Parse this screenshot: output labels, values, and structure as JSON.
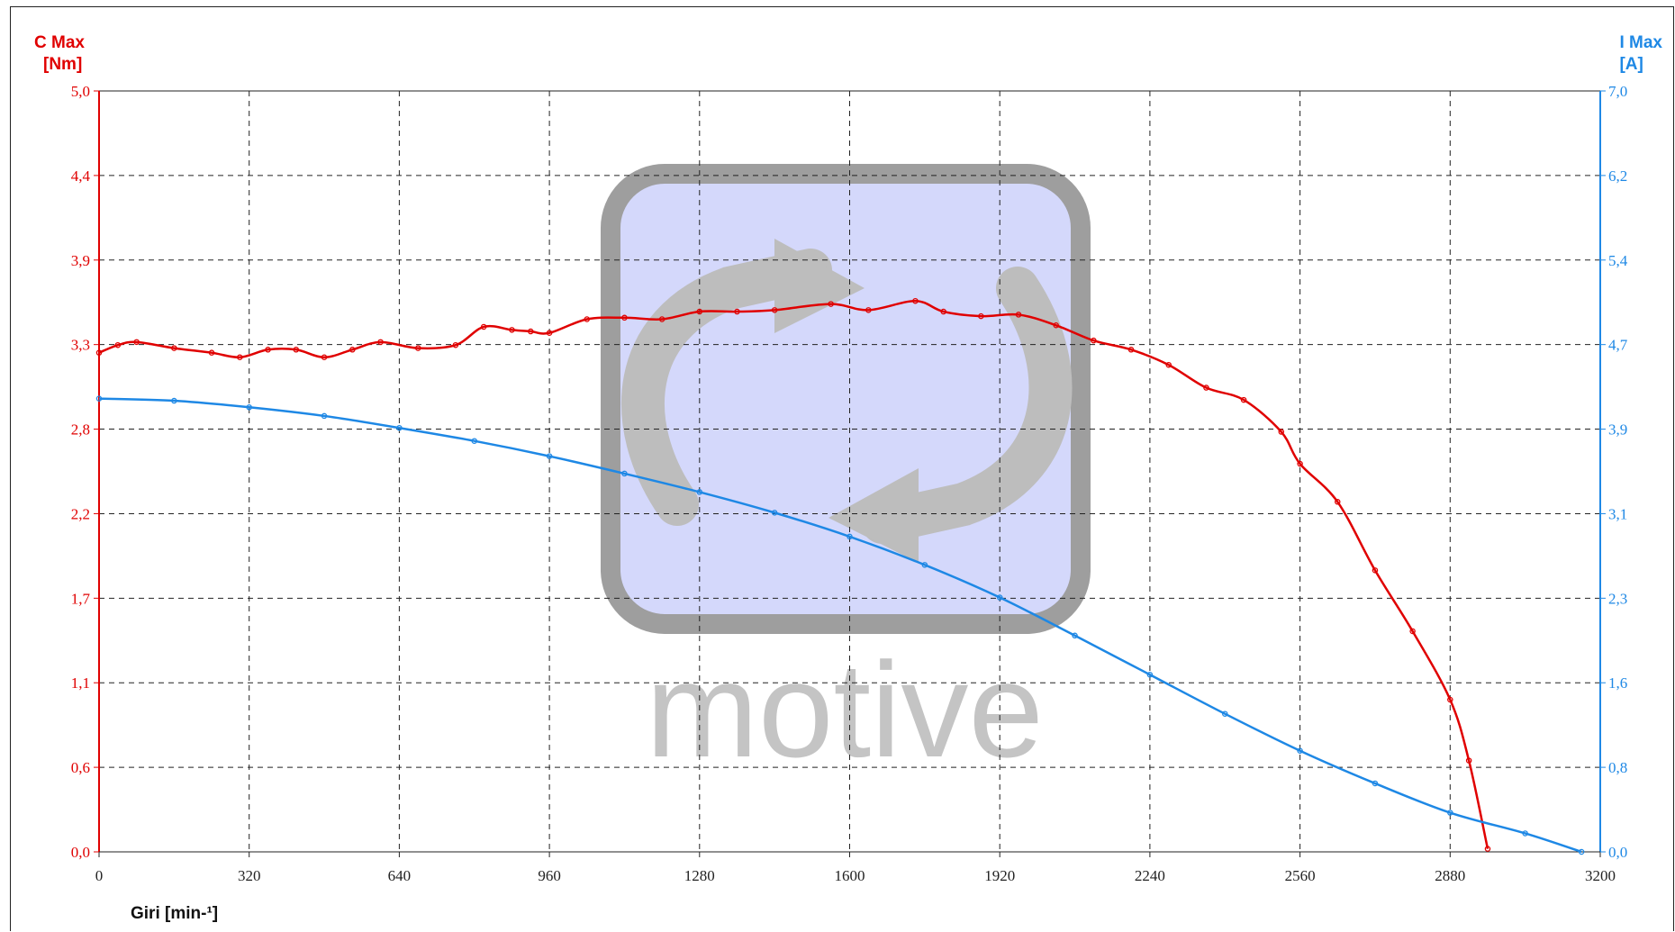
{
  "chart_data": {
    "type": "line",
    "x_axis": {
      "label": "Giri [min-¹]",
      "range": [
        0,
        3200
      ],
      "ticks": [
        "0",
        "320",
        "640",
        "960",
        "1280",
        "1600",
        "1920",
        "2240",
        "2560",
        "2880",
        "3200"
      ]
    },
    "y_axis_left": {
      "label_line1": "C Max",
      "label_line2": "[Nm]",
      "range": [
        0,
        5.0
      ],
      "ticks": [
        "0,0",
        "0,6",
        "1,1",
        "1,7",
        "2,2",
        "2,8",
        "3,3",
        "3,9",
        "4,4",
        "5,0"
      ],
      "color": "#e00000"
    },
    "y_axis_right": {
      "label_line1": "I Max",
      "label_line2": "[A]",
      "range": [
        0,
        7.0
      ],
      "ticks": [
        "0,0",
        "0,8",
        "1,6",
        "2,3",
        "3,1",
        "3,9",
        "4,7",
        "5,4",
        "6,2",
        "7,0"
      ],
      "color": "#1e88e5"
    },
    "grid": true,
    "series": [
      {
        "axis": "left",
        "color": "#e00000",
        "points": [
          [
            0,
            3.28
          ],
          [
            40,
            3.33
          ],
          [
            80,
            3.35
          ],
          [
            160,
            3.31
          ],
          [
            240,
            3.28
          ],
          [
            300,
            3.25
          ],
          [
            360,
            3.3
          ],
          [
            420,
            3.3
          ],
          [
            480,
            3.25
          ],
          [
            540,
            3.3
          ],
          [
            600,
            3.35
          ],
          [
            680,
            3.31
          ],
          [
            760,
            3.33
          ],
          [
            820,
            3.45
          ],
          [
            880,
            3.43
          ],
          [
            920,
            3.42
          ],
          [
            960,
            3.41
          ],
          [
            1040,
            3.5
          ],
          [
            1120,
            3.51
          ],
          [
            1200,
            3.5
          ],
          [
            1280,
            3.55
          ],
          [
            1360,
            3.55
          ],
          [
            1440,
            3.56
          ],
          [
            1560,
            3.6
          ],
          [
            1640,
            3.56
          ],
          [
            1740,
            3.62
          ],
          [
            1800,
            3.55
          ],
          [
            1880,
            3.52
          ],
          [
            1960,
            3.53
          ],
          [
            2040,
            3.46
          ],
          [
            2120,
            3.36
          ],
          [
            2200,
            3.3
          ],
          [
            2280,
            3.2
          ],
          [
            2360,
            3.05
          ],
          [
            2440,
            2.97
          ],
          [
            2520,
            2.76
          ],
          [
            2560,
            2.55
          ],
          [
            2640,
            2.3
          ],
          [
            2720,
            1.85
          ],
          [
            2800,
            1.45
          ],
          [
            2880,
            1.0
          ],
          [
            2920,
            0.6
          ],
          [
            2960,
            0.02
          ]
        ]
      },
      {
        "axis": "right",
        "color": "#1e88e5",
        "points": [
          [
            0,
            4.17
          ],
          [
            160,
            4.15
          ],
          [
            320,
            4.09
          ],
          [
            480,
            4.01
          ],
          [
            640,
            3.9
          ],
          [
            800,
            3.78
          ],
          [
            960,
            3.64
          ],
          [
            1120,
            3.48
          ],
          [
            1280,
            3.31
          ],
          [
            1440,
            3.12
          ],
          [
            1600,
            2.9
          ],
          [
            1760,
            2.64
          ],
          [
            1920,
            2.34
          ],
          [
            2080,
            1.99
          ],
          [
            2240,
            1.63
          ],
          [
            2400,
            1.27
          ],
          [
            2560,
            0.93
          ],
          [
            2720,
            0.63
          ],
          [
            2880,
            0.36
          ],
          [
            3040,
            0.17
          ],
          [
            3160,
            0.0
          ]
        ]
      }
    ]
  },
  "watermark_text": "motive"
}
